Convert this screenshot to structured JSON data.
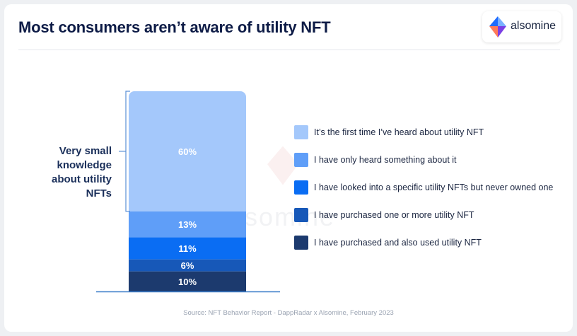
{
  "title": "Most consumers aren’t aware of utility NFT",
  "brand": {
    "name": "alsomine",
    "icon": "alsomine-diamond-logo-icon",
    "colors": [
      "#7ab0ff",
      "#1e6bff",
      "#ff7a59",
      "#7b3fe4"
    ]
  },
  "bracket_label": "Very small knowledge about utility NFTs",
  "watermark": "alsomine",
  "source": "Source: NFT Behavior Report - DappRadar x Alsomine, February 2023",
  "chart_data": {
    "type": "bar",
    "stacked": true,
    "unit": "%",
    "categories": [
      ""
    ],
    "series": [
      {
        "name": "It’s the first time I’ve heard about utility NFT",
        "values": [
          60
        ],
        "label": "60%",
        "color": "#a4c8fb"
      },
      {
        "name": "I have only heard something about it",
        "values": [
          13
        ],
        "label": "13%",
        "color": "#5f9ef8"
      },
      {
        "name": "I have looked into a specific utility NFTs but never owned one",
        "values": [
          11
        ],
        "label": "11%",
        "color": "#0a6df3"
      },
      {
        "name": "I have purchased one or more utility NFT",
        "values": [
          6
        ],
        "label": "6%",
        "color": "#1758b8"
      },
      {
        "name": "I have purchased and also used utility NFT",
        "values": [
          10
        ],
        "label": "10%",
        "color": "#1c3a6e"
      }
    ],
    "bracket_covers_series": [
      0
    ],
    "baseline_color": "#3d7ec9",
    "legend_position": "right"
  }
}
